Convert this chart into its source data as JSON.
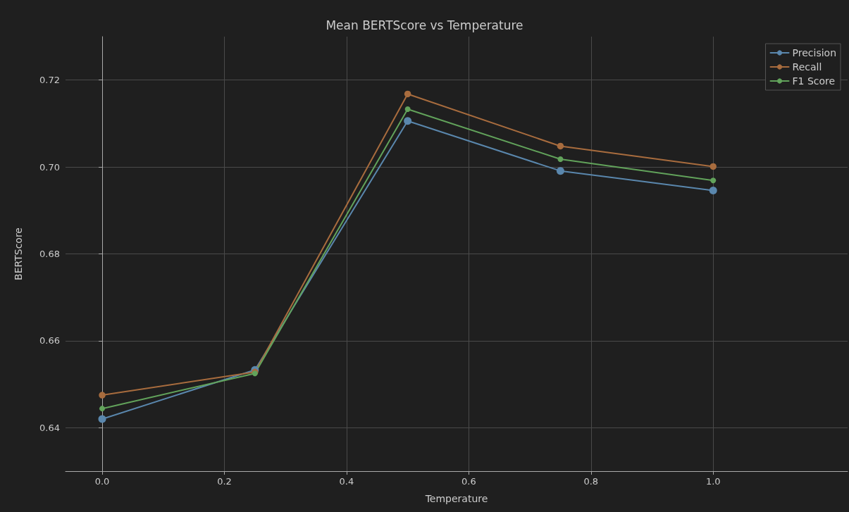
{
  "chart_data": {
    "type": "line",
    "title": "Mean BERTScore vs Temperature",
    "xlabel": "Temperature",
    "ylabel": "BERTScore",
    "x": [
      0.0,
      0.25,
      0.5,
      0.75,
      1.0
    ],
    "series": [
      {
        "name": "Precision",
        "color": "#5a87ad",
        "values": [
          0.642,
          0.6533,
          0.7106,
          0.6991,
          0.6946
        ]
      },
      {
        "name": "Recall",
        "color": "#a86c3e",
        "values": [
          0.6475,
          0.6528,
          0.7168,
          0.7048,
          0.7001
        ]
      },
      {
        "name": "F1 Score",
        "color": "#62a35b",
        "values": [
          0.6444,
          0.6525,
          0.7133,
          0.7018,
          0.6969
        ]
      }
    ],
    "xlim": [
      -0.06,
      1.22
    ],
    "xticks": [
      {
        "value": 0.0,
        "label": "0.0"
      },
      0.2,
      0.4,
      0.6,
      0.8,
      {
        "value": 1.0,
        "label": "1.0"
      }
    ],
    "ylim": [
      0.63,
      0.73
    ],
    "yticks": [
      {
        "value": 0.64,
        "label": "0.64"
      },
      {
        "value": 0.66,
        "label": "0.66"
      },
      {
        "value": 0.68,
        "label": "0.68"
      },
      {
        "value": 0.7,
        "label": "0.70"
      },
      {
        "value": 0.72,
        "label": "0.72"
      }
    ],
    "grid": true,
    "legend": "top right",
    "marker": "circle",
    "line_style": "solid"
  }
}
